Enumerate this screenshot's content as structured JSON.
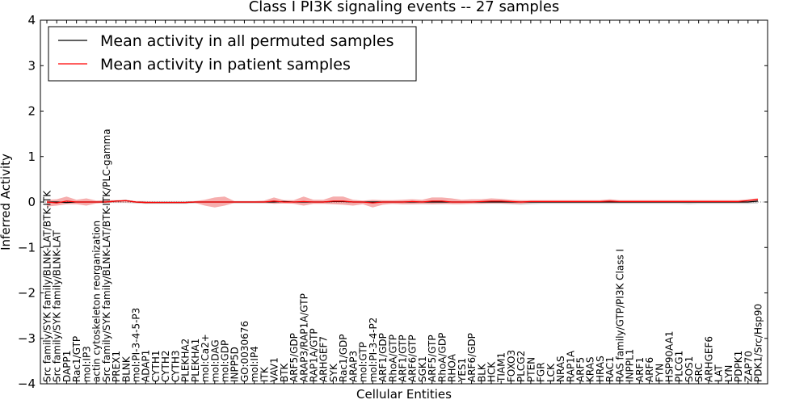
{
  "chart_data": {
    "type": "line",
    "title": "Class I PI3K signaling events -- 27 samples",
    "xlabel": "Cellular Entities",
    "ylabel": "Inferred Activity",
    "ylim": [
      -4,
      4
    ],
    "yticks": [
      -4,
      -3,
      -2,
      -1,
      0,
      1,
      2,
      3,
      4
    ],
    "grid": false,
    "legend_position": "top-left",
    "categories": [
      "Src family/SYK family/BLNK-LAT/BTK-ITK",
      "Src family/SYK family/BLNK-LAT",
      "DAPP1",
      "Rac1/GTP",
      "mol:IP3",
      "actin cytoskeleton reorganization",
      "Src family/SYK family/BLNK-LAT/BTK-ITK/PLC-gamma",
      "PREX1",
      "BLNK",
      "mol:PI-3-4-5-P3",
      "ADAP1",
      "CYTH1",
      "CYTH2",
      "CYTH3",
      "PLEKHA2",
      "PLEKHA1",
      "mol:Ca2+",
      "mol:DAG",
      "mol:GDP",
      "INPP5D",
      "GO:0030676",
      "mol:IP4",
      "ITK",
      "VAV1",
      "BTK",
      "ARF5/GDP",
      "ARAP3/RAP1A/GTP",
      "RAP1A/GTP",
      "ARHGEF7",
      "SYK",
      "Rac1/GDP",
      "ARAP3",
      "mol:GTP",
      "mol:PI-3-4-P2",
      "ARF1/GDP",
      "RhoA/GTP",
      "ARF1/GTP",
      "ARF6/GTP",
      "SGK1",
      "ARF5/GTP",
      "RhoA/GDP",
      "RHOA",
      "YES1",
      "ARF6/GDP",
      "BLK",
      "HCK",
      "TIAM1",
      "FOXO3",
      "PLCG2",
      "PTEN",
      "FGR",
      "LCK",
      "NRAS",
      "RAP1A",
      "ARF5",
      "KRAS",
      "HRAS",
      "RAC1",
      "RAS family/GTP/PI3K Class I",
      "INPPL1",
      "ARF1",
      "ARF6",
      "FYN",
      "HSP90AA1",
      "PLCG1",
      "SOS1",
      "SRC",
      "ARHGEF6",
      "LAT",
      "LYN",
      "PDPK1",
      "ZAP70",
      "PDK1/Src/Hsp90"
    ],
    "series": [
      {
        "name": "Mean activity in all permuted samples",
        "color": "#000000",
        "values": [
          0.0,
          0.0,
          -0.01,
          0.0,
          0.0,
          0.0,
          0.0,
          0.02,
          0.03,
          0.0,
          -0.01,
          -0.01,
          -0.01,
          -0.01,
          -0.01,
          0.0,
          0.0,
          0.0,
          0.0,
          0.0,
          0.0,
          0.0,
          0.0,
          0.0,
          0.01,
          0.0,
          0.0,
          0.0,
          0.0,
          0.01,
          0.01,
          0.0,
          0.0,
          0.0,
          0.0,
          0.0,
          0.0,
          0.0,
          0.0,
          0.0,
          0.0,
          0.0,
          0.0,
          0.0,
          0.0,
          0.0,
          0.0,
          0.0,
          0.0,
          0.0,
          0.0,
          0.0,
          0.0,
          0.0,
          0.0,
          0.0,
          0.0,
          0.0,
          0.0,
          0.0,
          0.0,
          0.0,
          0.0,
          0.0,
          0.0,
          0.0,
          0.0,
          0.0,
          0.0,
          0.0,
          0.0,
          0.0,
          0.02
        ],
        "band": {
          "color": "#cccccc",
          "upper": [
            0.02,
            0.02,
            0.02,
            0.02,
            0.02,
            0.02,
            0.02,
            0.03,
            0.03,
            0.02,
            0.02,
            0.02,
            0.02,
            0.02,
            0.02,
            0.02,
            0.02,
            0.02,
            0.02,
            0.02,
            0.02,
            0.02,
            0.02,
            0.02,
            0.02,
            0.02,
            0.02,
            0.02,
            0.02,
            0.02,
            0.02,
            0.02,
            0.02,
            0.02,
            0.02,
            0.02,
            0.02,
            0.02,
            0.02,
            0.02,
            0.02,
            0.02,
            0.02,
            0.02,
            0.02,
            0.02,
            0.02,
            0.02,
            0.02,
            0.02,
            0.02,
            0.02,
            0.02,
            0.02,
            0.02,
            0.02,
            0.02,
            0.02,
            0.02,
            0.02,
            0.02,
            0.02,
            0.02,
            0.02,
            0.02,
            0.02,
            0.02,
            0.02,
            0.02,
            0.02,
            0.02,
            0.02,
            0.04
          ],
          "lower": [
            -0.03,
            -0.03,
            -0.04,
            -0.04,
            -0.03,
            -0.03,
            -0.02,
            -0.02,
            -0.02,
            -0.03,
            -0.04,
            -0.04,
            -0.04,
            -0.04,
            -0.04,
            -0.03,
            -0.03,
            -0.03,
            -0.03,
            -0.03,
            -0.03,
            -0.03,
            -0.03,
            -0.03,
            -0.03,
            -0.03,
            -0.03,
            -0.03,
            -0.03,
            -0.03,
            -0.03,
            -0.03,
            -0.03,
            -0.03,
            -0.03,
            -0.04,
            -0.05,
            -0.05,
            -0.05,
            -0.05,
            -0.05,
            -0.04,
            -0.04,
            -0.04,
            -0.04,
            -0.04,
            -0.04,
            -0.05,
            -0.06,
            -0.05,
            -0.04,
            -0.04,
            -0.04,
            -0.04,
            -0.04,
            -0.04,
            -0.04,
            -0.04,
            -0.04,
            -0.04,
            -0.04,
            -0.04,
            -0.04,
            -0.04,
            -0.04,
            -0.05,
            -0.04,
            -0.04,
            -0.04,
            -0.04,
            -0.04,
            -0.04,
            -0.03
          ]
        }
      },
      {
        "name": "Mean activity in patient samples",
        "color": "#ff0000",
        "values": [
          0.0,
          -0.02,
          0.02,
          0.0,
          0.0,
          0.0,
          0.0,
          0.02,
          0.03,
          0.0,
          -0.01,
          -0.01,
          -0.01,
          -0.01,
          -0.01,
          0.0,
          0.0,
          0.0,
          0.0,
          0.0,
          0.0,
          0.0,
          0.0,
          0.02,
          0.0,
          0.0,
          0.01,
          0.0,
          0.0,
          0.02,
          0.02,
          0.0,
          0.0,
          -0.02,
          0.0,
          0.0,
          0.0,
          0.01,
          0.0,
          0.02,
          0.02,
          0.0,
          0.0,
          0.0,
          0.01,
          0.02,
          0.02,
          0.01,
          0.0,
          0.01,
          0.01,
          0.01,
          0.01,
          0.01,
          0.01,
          0.01,
          0.01,
          0.02,
          0.01,
          0.01,
          0.01,
          0.01,
          0.01,
          0.01,
          0.01,
          0.01,
          0.01,
          0.01,
          0.01,
          0.01,
          0.01,
          0.03,
          0.06
        ],
        "band": {
          "color": "#f4a0a0",
          "upper": [
            0.05,
            0.06,
            0.12,
            0.05,
            0.08,
            0.03,
            0.04,
            0.04,
            0.05,
            0.02,
            0.02,
            0.01,
            0.01,
            0.01,
            0.01,
            0.02,
            0.05,
            0.1,
            0.12,
            0.02,
            0.02,
            0.02,
            0.03,
            0.1,
            0.04,
            0.04,
            0.12,
            0.05,
            0.05,
            0.12,
            0.12,
            0.05,
            0.03,
            0.05,
            0.04,
            0.04,
            0.05,
            0.06,
            0.05,
            0.1,
            0.1,
            0.08,
            0.05,
            0.06,
            0.06,
            0.08,
            0.07,
            0.05,
            0.04,
            0.04,
            0.04,
            0.04,
            0.04,
            0.04,
            0.04,
            0.04,
            0.04,
            0.06,
            0.04,
            0.04,
            0.04,
            0.04,
            0.04,
            0.04,
            0.04,
            0.04,
            0.04,
            0.04,
            0.04,
            0.04,
            0.04,
            0.06,
            0.08
          ],
          "lower": [
            -0.1,
            -0.08,
            -0.05,
            -0.05,
            -0.08,
            -0.03,
            -0.02,
            -0.01,
            -0.01,
            -0.02,
            -0.03,
            -0.02,
            -0.02,
            -0.02,
            -0.02,
            -0.02,
            -0.08,
            -0.12,
            -0.08,
            -0.02,
            -0.02,
            -0.02,
            -0.02,
            -0.04,
            -0.03,
            -0.04,
            -0.08,
            -0.04,
            -0.04,
            -0.05,
            -0.06,
            -0.08,
            -0.05,
            -0.12,
            -0.06,
            -0.04,
            -0.05,
            -0.05,
            -0.04,
            -0.05,
            -0.04,
            -0.05,
            -0.05,
            -0.04,
            -0.04,
            -0.03,
            -0.03,
            -0.04,
            -0.04,
            -0.02,
            -0.02,
            -0.02,
            -0.02,
            -0.02,
            -0.02,
            -0.02,
            -0.02,
            -0.02,
            -0.02,
            -0.02,
            -0.02,
            -0.02,
            -0.02,
            -0.02,
            -0.02,
            -0.02,
            -0.02,
            -0.02,
            -0.02,
            -0.02,
            -0.02,
            -0.01,
            0.02
          ]
        }
      }
    ]
  }
}
